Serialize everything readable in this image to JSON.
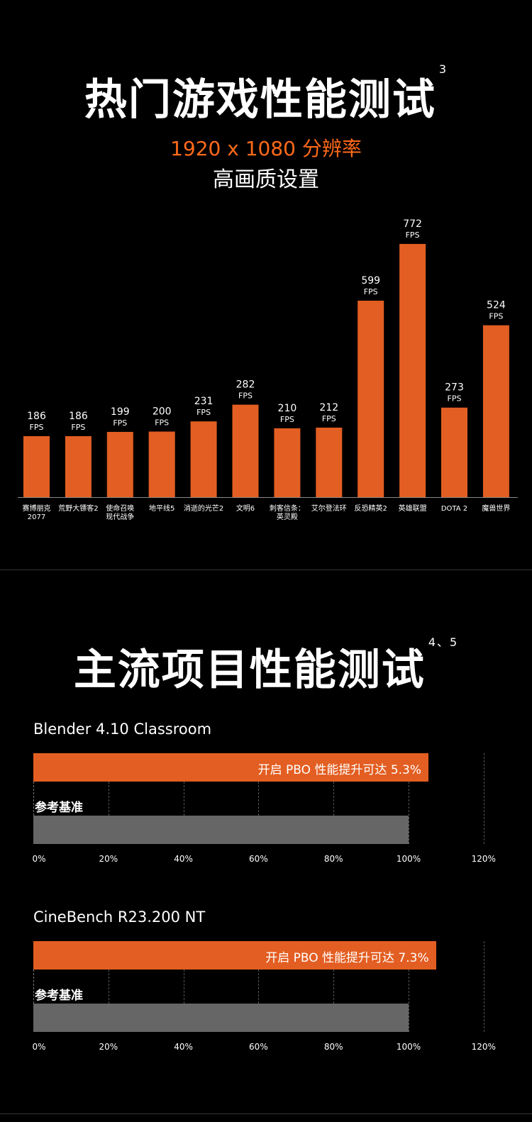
{
  "section1": {
    "title": "热门游戏性能测试",
    "title_sup": "3",
    "subtitle_resolution": "1920 x 1080 分辨率",
    "subtitle_quality": "高画质设置"
  },
  "section2": {
    "title": "主流项目性能测试",
    "title_sup": "4、5"
  },
  "colors": {
    "accent": "#e35e22",
    "reference": "#666666",
    "background": "#000000"
  },
  "chart_data": [
    {
      "type": "bar",
      "title": "热门游戏性能测试",
      "unit": "FPS",
      "categories": [
        [
          "赛博朋克",
          "2077"
        ],
        [
          "荒野大镖客2"
        ],
        [
          "使命召唤",
          "现代战争"
        ],
        [
          "地平线5"
        ],
        [
          "消逝的光芒2"
        ],
        [
          "文明6"
        ],
        [
          "刺客信条：",
          "英灵殿"
        ],
        [
          "艾尔登法环"
        ],
        [
          "反恐精英2"
        ],
        [
          "英雄联盟"
        ],
        [
          "DOTA 2"
        ],
        [
          "魔兽世界"
        ]
      ],
      "values": [
        186,
        186,
        199,
        200,
        231,
        282,
        210,
        212,
        599,
        772,
        273,
        524
      ],
      "ylim": [
        0,
        800
      ],
      "grid": false
    },
    {
      "type": "bar",
      "orientation": "horizontal",
      "title": "Blender 4.10  Classroom",
      "series": [
        {
          "name": "开启 PBO 性能提升可达 5.3%",
          "values": [
            105.3
          ]
        },
        {
          "name": "参考基准",
          "values": [
            100
          ]
        }
      ],
      "xticks": [
        "0%",
        "20%",
        "40%",
        "60%",
        "80%",
        "100%",
        "120%"
      ],
      "xlim": [
        0,
        120
      ],
      "grid": true
    },
    {
      "type": "bar",
      "orientation": "horizontal",
      "title": "CineBench R23.200  NT",
      "series": [
        {
          "name": "开启 PBO 性能提升可达 7.3%",
          "values": [
            107.3
          ]
        },
        {
          "name": "参考基准",
          "values": [
            100
          ]
        }
      ],
      "xticks": [
        "0%",
        "20%",
        "40%",
        "60%",
        "80%",
        "100%",
        "120%"
      ],
      "xlim": [
        0,
        120
      ],
      "grid": true
    }
  ]
}
